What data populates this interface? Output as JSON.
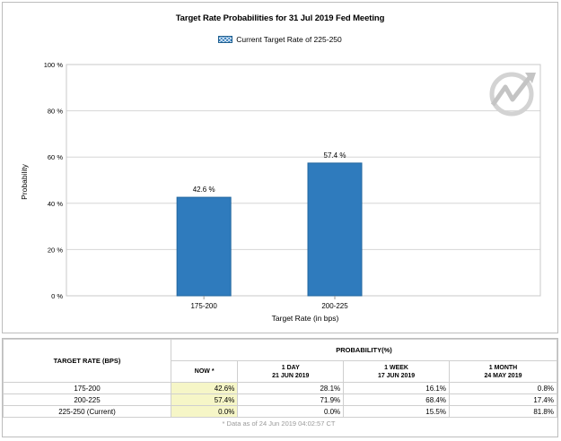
{
  "chart_data": {
    "type": "bar",
    "title": "Target Rate Probabilities for 31 Jul 2019 Fed Meeting",
    "legend": "Current Target Rate of 225-250",
    "legend_placement": "top-center",
    "xlabel": "Target Rate (in bps)",
    "ylabel": "Probability",
    "categories": [
      "175-200",
      "200-225"
    ],
    "values": [
      42.6,
      57.4
    ],
    "data_labels": [
      "42.6 %",
      "57.4 %"
    ],
    "ylim": [
      0,
      100
    ],
    "yticks": [
      0,
      20,
      40,
      60,
      80,
      100
    ],
    "ytick_labels": [
      "0 %",
      "20 %",
      "40 %",
      "60 %",
      "80 %",
      "100 %"
    ],
    "grid": true,
    "bar_color": "#2f7bbd"
  },
  "table": {
    "header_rate": "TARGET RATE (BPS)",
    "header_probability": "PROBABILITY(%)",
    "columns": [
      {
        "line1": "NOW *",
        "line2": ""
      },
      {
        "line1": "1 DAY",
        "line2": "21 JUN 2019"
      },
      {
        "line1": "1 WEEK",
        "line2": "17 JUN 2019"
      },
      {
        "line1": "1 MONTH",
        "line2": "24 MAY 2019"
      }
    ],
    "rows": [
      {
        "rate": "175-200",
        "values": [
          "42.6%",
          "28.1%",
          "16.1%",
          "0.8%"
        ]
      },
      {
        "rate": "200-225",
        "values": [
          "57.4%",
          "71.9%",
          "68.4%",
          "17.4%"
        ]
      },
      {
        "rate": "225-250 (Current)",
        "values": [
          "0.0%",
          "0.0%",
          "15.5%",
          "81.8%"
        ]
      }
    ],
    "footnote": "* Data as of 24 Jun 2019 04:02:57 CT",
    "highlight_color": "#f6f6c7"
  }
}
